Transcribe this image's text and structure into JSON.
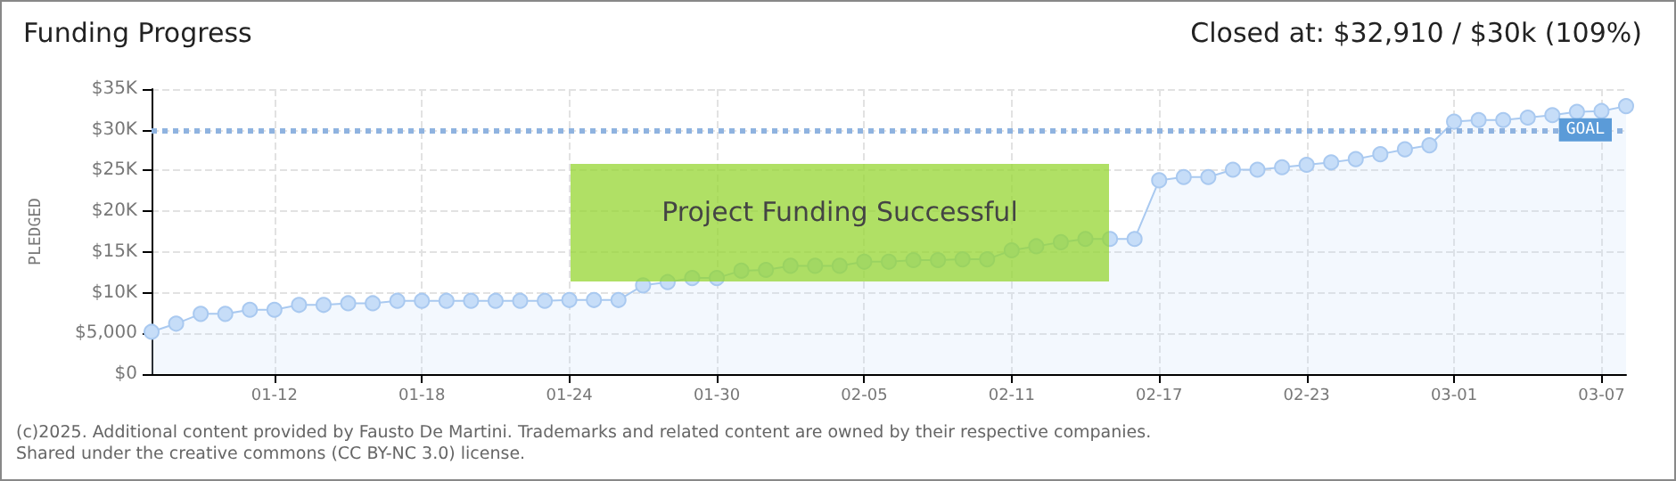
{
  "chart_data": {
    "type": "area",
    "title": "Funding Progress",
    "subtitle": "Closed at: $32,910 / $30k (109%)",
    "ylabel": "PLEDGED",
    "x": [
      "--01-07",
      "--01-08",
      "--01-09",
      "--01-10",
      "--01-11",
      "--01-12",
      "--01-13",
      "--01-14",
      "--01-15",
      "--01-16",
      "--01-17",
      "--01-18",
      "--01-19",
      "--01-20",
      "--01-21",
      "--01-22",
      "--01-23",
      "--01-24",
      "--01-25",
      "--01-26",
      "--01-27",
      "--01-28",
      "--01-29",
      "--01-30",
      "--01-31",
      "--02-01",
      "--02-02",
      "--02-03",
      "--02-04",
      "--02-05",
      "--02-06",
      "--02-07",
      "--02-08",
      "--02-09",
      "--02-10",
      "--02-11",
      "--02-12",
      "--02-13",
      "--02-14",
      "--02-15",
      "--02-16",
      "--02-17",
      "--02-18",
      "--02-19",
      "--02-20",
      "--02-21",
      "--02-22",
      "--02-23",
      "--02-24",
      "--02-25",
      "--02-26",
      "--02-27",
      "--02-28",
      "--03-01",
      "--03-02",
      "--03-03",
      "--03-04",
      "--03-05",
      "--03-06",
      "--03-07",
      "--03-08"
    ],
    "series": [
      {
        "color": "#a9c9f0",
        "values": [
          5200,
          6200,
          7400,
          7400,
          7900,
          7900,
          8500,
          8500,
          8700,
          8700,
          9000,
          9000,
          9000,
          9000,
          9000,
          9000,
          9000,
          9100,
          9100,
          9100,
          10900,
          11300,
          11800,
          11800,
          12700,
          12800,
          13300,
          13300,
          13300,
          13800,
          13800,
          14000,
          14000,
          14100,
          14100,
          15200,
          15700,
          16200,
          16600,
          16600,
          16600,
          23800,
          24200,
          24200,
          25100,
          25100,
          25400,
          25700,
          26000,
          26400,
          27000,
          27600,
          28100,
          31000,
          31200,
          31200,
          31500,
          31800,
          32200,
          32300,
          32910
        ]
      }
    ],
    "xlim": [
      "--01-07",
      "--03-08"
    ],
    "xticks": [
      {
        "value": "--01-12",
        "label": "01-12"
      },
      {
        "value": "--01-18",
        "label": "01-18"
      },
      {
        "value": "--01-24",
        "label": "01-24"
      },
      {
        "value": "--01-30",
        "label": "01-30"
      },
      {
        "value": "--02-05",
        "label": "02-05"
      },
      {
        "value": "--02-11",
        "label": "02-11"
      },
      {
        "value": "--02-17",
        "label": "02-17"
      },
      {
        "value": "--02-23",
        "label": "02-23"
      },
      {
        "value": "--03-01",
        "label": "03-01"
      },
      {
        "value": "--03-07",
        "label": "03-07"
      }
    ],
    "ylim": [
      0,
      35000
    ],
    "yticks": [
      {
        "value": 0,
        "label": "$0"
      },
      {
        "value": 5000,
        "label": "$5,000"
      },
      {
        "value": 10000,
        "label": "$10K"
      },
      {
        "value": 15000,
        "label": "$15K"
      },
      {
        "value": 20000,
        "label": "$20K"
      },
      {
        "value": 25000,
        "label": "$25K"
      },
      {
        "value": 30000,
        "label": "$30K"
      },
      {
        "value": 35000,
        "label": "$35K"
      }
    ],
    "ref_lines": [
      {
        "axis": "y",
        "value": 30000,
        "label": "GOAL",
        "color": "#8fb3e0",
        "line_style": "dotted"
      }
    ],
    "grid": true,
    "marker": "circle",
    "annotations": [
      "Project Funding Successful",
      "(c)2025. Additional content provided by Fausto De Martini. Trademarks and related content are owned by their respective companies.",
      "Shared under the creative commons (CC BY-NC 3.0) license."
    ]
  }
}
